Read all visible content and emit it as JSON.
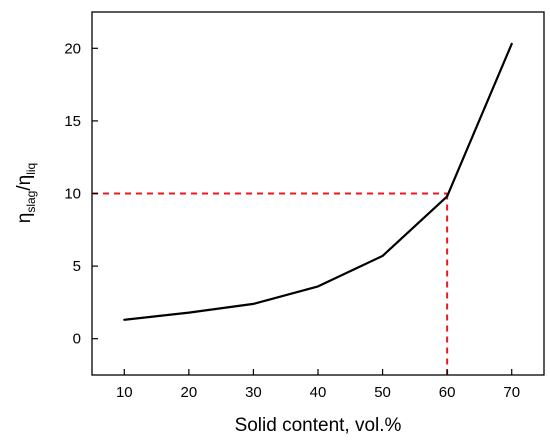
{
  "chart_data": {
    "type": "line",
    "xlabel": "Solid content, vol.%",
    "ylabel": {
      "main_1": "η",
      "sub_1": "slag",
      "slash": "/",
      "main_2": "η",
      "sub_2": "liq"
    },
    "xlim": [
      5,
      75
    ],
    "ylim": [
      -2.5,
      22.5
    ],
    "x_ticks": [
      10,
      20,
      30,
      40,
      50,
      60,
      70
    ],
    "y_ticks": [
      0,
      5,
      10,
      15,
      20
    ],
    "grid": false,
    "series": [
      {
        "x": [
          10,
          20,
          30,
          40,
          50,
          60,
          70
        ],
        "y": [
          1.3,
          1.8,
          2.4,
          3.6,
          5.7,
          9.8,
          20.3
        ],
        "color": "#000000"
      }
    ],
    "reference_lines": {
      "x": 60,
      "y": 10,
      "color": "#e8191f",
      "style": "dashed"
    }
  }
}
